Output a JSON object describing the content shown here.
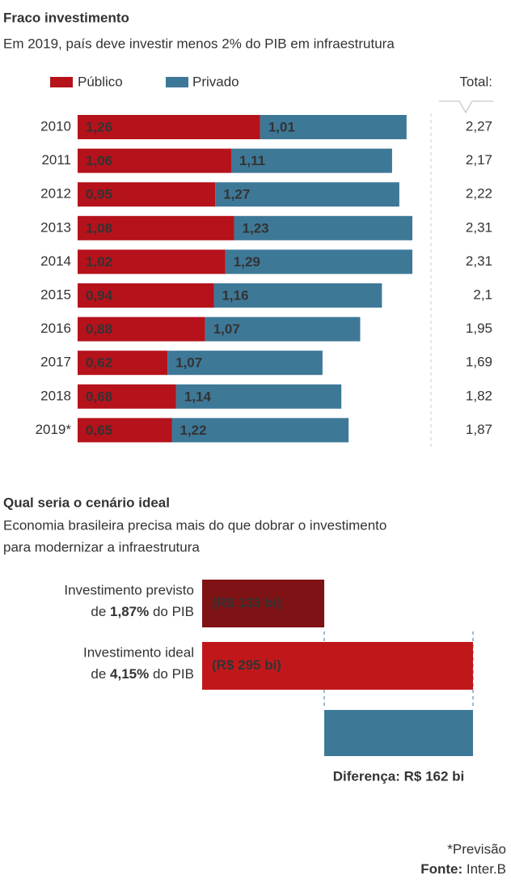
{
  "chart_data": [
    {
      "type": "stacked-bar",
      "title": "Fraco investimento",
      "subtitle": "Em 2019, país deve investir menos 2% do PIB em infraestrutura",
      "categories": [
        "2010",
        "2011",
        "2012",
        "2013",
        "2014",
        "2015",
        "2016",
        "2017",
        "2018",
        "2019*"
      ],
      "series": [
        {
          "name": "Público",
          "color": "#b5121b",
          "values": [
            1.26,
            1.06,
            0.95,
            1.08,
            1.02,
            0.94,
            0.88,
            0.62,
            0.68,
            0.65
          ],
          "value_labels": [
            "1,26",
            "1,06",
            "0,95",
            "1,08",
            "1,02",
            "0,94",
            "0,88",
            "0,62",
            "0,68",
            "0,65"
          ]
        },
        {
          "name": "Privado",
          "color": "#3e7897",
          "values": [
            1.01,
            1.11,
            1.27,
            1.23,
            1.29,
            1.16,
            1.07,
            1.07,
            1.14,
            1.22
          ],
          "value_labels": [
            "1,01",
            "1,11",
            "1,27",
            "1,23",
            "1,29",
            "1,16",
            "1,07",
            "1,07",
            "1,14",
            "1,22"
          ]
        }
      ],
      "totals": {
        "label": "Total:",
        "values": [
          2.27,
          2.17,
          2.22,
          2.31,
          2.31,
          2.1,
          1.95,
          1.69,
          1.82,
          1.87
        ],
        "value_labels": [
          "2,27",
          "2,17",
          "2,22",
          "2,31",
          "2,31",
          "2,1",
          "1,95",
          "1,69",
          "1,82",
          "1,87"
        ]
      },
      "footnote": "*Previsão"
    },
    {
      "type": "comparison",
      "title": "Qual seria o cenário ideal",
      "subtitle_lines": [
        "Economia brasileira precisa mais do que dobrar o investimento",
        "para modernizar a infraestrutura"
      ],
      "share_prefix": "de",
      "share_suffix": "do PIB",
      "bars": [
        {
          "name": "Investimento previsto",
          "share": 1.87,
          "share_label": "1,87%",
          "value": 133,
          "value_label": "(R$ 133 bi)",
          "color": "#7e1214"
        },
        {
          "name": "Investimento ideal",
          "share": 4.15,
          "share_label": "4,15%",
          "value": 295,
          "value_label": "(R$ 295 bi)",
          "color": "#c0181a"
        }
      ],
      "difference": {
        "value": 162,
        "value_label": "Diferença: R$ 162 bi",
        "color": "#3e7897"
      },
      "source_label": "Fonte:",
      "source": "Inter.B"
    }
  ]
}
